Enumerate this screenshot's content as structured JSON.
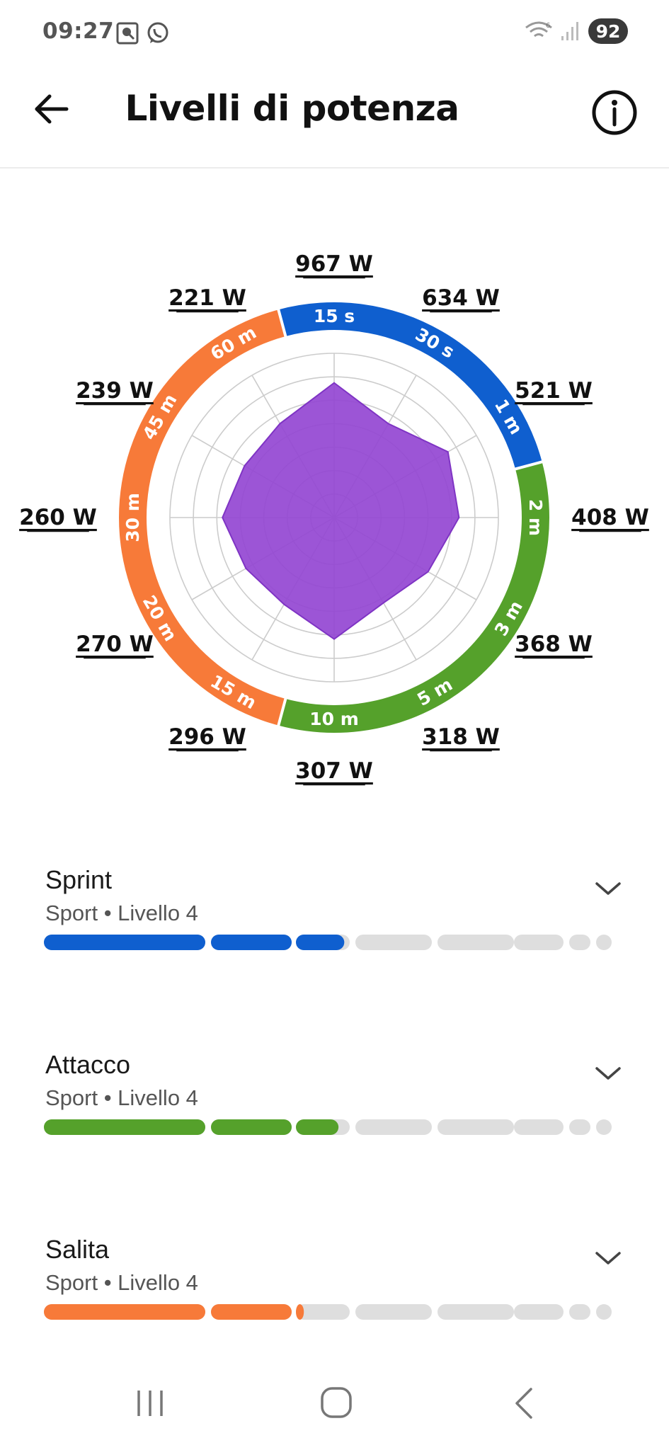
{
  "status_bar": {
    "time": "09:27",
    "battery": "92",
    "icons": [
      "screen-record-icon",
      "whatsapp-icon",
      "wifi-icon",
      "signal-icon"
    ]
  },
  "header": {
    "title": "Livelli di potenza",
    "back_icon": "arrow-left-icon",
    "info_icon": "info-icon"
  },
  "chart_data": {
    "type": "radar",
    "max_power_reference": 967,
    "axes": [
      {
        "label": "15 s",
        "value": "967 W",
        "watts": 967,
        "group": "sprint"
      },
      {
        "label": "30 s",
        "value": "634 W",
        "watts": 634,
        "group": "sprint"
      },
      {
        "label": "1 m",
        "value": "521 W",
        "watts": 521,
        "group": "sprint"
      },
      {
        "label": "2 m",
        "value": "408 W",
        "watts": 408,
        "group": "attacco"
      },
      {
        "label": "3 m",
        "value": "368 W",
        "watts": 368,
        "group": "attacco"
      },
      {
        "label": "5 m",
        "value": "318 W",
        "watts": 318,
        "group": "attacco"
      },
      {
        "label": "10 m",
        "value": "307 W",
        "watts": 307,
        "group": "attacco"
      },
      {
        "label": "15 m",
        "value": "296 W",
        "watts": 296,
        "group": "salita"
      },
      {
        "label": "20 m",
        "value": "270 W",
        "watts": 270,
        "group": "salita"
      },
      {
        "label": "30 m",
        "value": "260 W",
        "watts": 260,
        "group": "salita"
      },
      {
        "label": "45 m",
        "value": "239 W",
        "watts": 239,
        "group": "salita"
      },
      {
        "label": "60 m",
        "value": "221 W",
        "watts": 221,
        "group": "salita"
      }
    ],
    "series_fill_fraction": [
      0.82,
      0.66,
      0.8,
      0.76,
      0.66,
      0.6,
      0.74,
      0.61,
      0.62,
      0.68,
      0.63,
      0.66
    ],
    "grid_rings": 7,
    "colors": {
      "sprint": "#0f5fcf",
      "attacco": "#55a12b",
      "salita": "#f77a39",
      "fill": "#9446d3",
      "grid": "#cccccc"
    }
  },
  "levels": [
    {
      "name": "Sprint",
      "subtitle": "Sport • Livello 4",
      "color": "#0f5fcf",
      "progress": 0.52
    },
    {
      "name": "Attacco",
      "subtitle": "Sport • Livello 4",
      "color": "#55a12b",
      "progress": 0.51
    },
    {
      "name": "Salita",
      "subtitle": "Sport • Livello 4",
      "color": "#f77a39",
      "progress": 0.45
    }
  ],
  "level_segment_colors": {
    "empty": "#dedede"
  },
  "nav_bar": {
    "icons": [
      "recent-apps-icon",
      "home-icon",
      "back-nav-icon"
    ]
  }
}
